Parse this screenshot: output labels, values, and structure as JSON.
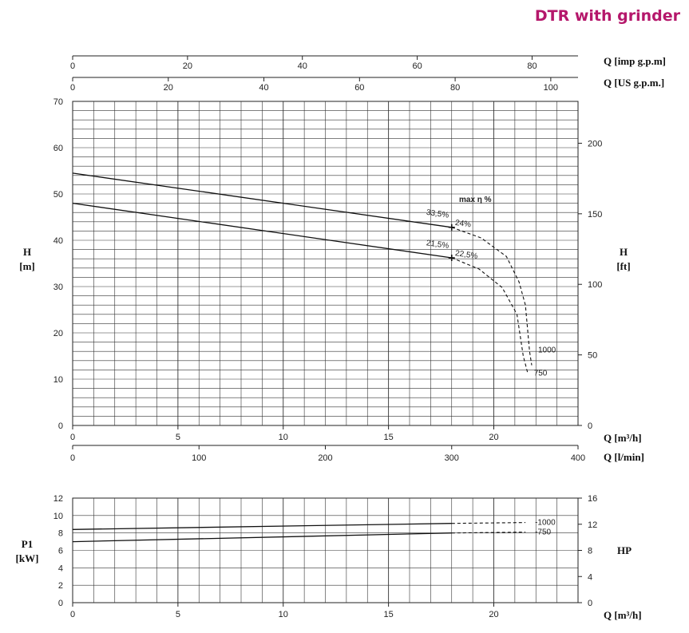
{
  "title": "DTR with grinder",
  "chart_data": [
    {
      "type": "line",
      "name": "head",
      "x_unit": "Q [m³/h]",
      "xlim": [
        0,
        24
      ],
      "ylim": [
        0,
        70
      ],
      "y_unit_left": [
        "H",
        "[m]"
      ],
      "y_unit_right": [
        "H",
        "[ft]"
      ],
      "x_ticks": [
        "0",
        "5",
        "10",
        "15",
        "20"
      ],
      "y_ticks": [
        "0",
        "10",
        "20",
        "30",
        "40",
        "50",
        "60",
        "70"
      ],
      "right_ticks": [
        "0",
        "50",
        "100",
        "150",
        "200"
      ],
      "top_scales": [
        {
          "label": "Q [imp g.p.m]",
          "ticks": [
            "0",
            "20",
            "40",
            "60",
            "80"
          ]
        },
        {
          "label": "Q [US g.p.m.]",
          "ticks": [
            "0",
            "20",
            "40",
            "60",
            "80",
            "100"
          ]
        }
      ],
      "bottom_scale": {
        "label": "Q [l/min]",
        "ticks": [
          "0",
          "100",
          "200",
          "300",
          "400"
        ]
      },
      "legend_title": "max η %",
      "series": [
        {
          "name": "1000",
          "solid": [
            [
              0,
              54.5
            ],
            [
              18,
              42.8
            ]
          ],
          "dashed": [
            [
              18,
              42.8
            ],
            [
              19.4,
              40.5
            ],
            [
              20.6,
              36.5
            ],
            [
              21.2,
              31
            ],
            [
              21.5,
              26
            ],
            [
              21.7,
              16
            ],
            [
              21.8,
              13
            ]
          ],
          "bep": [
            18,
            42.8
          ],
          "bep_labels": [
            "33,5%",
            "24%"
          ]
        },
        {
          "name": "750",
          "solid": [
            [
              0,
              48
            ],
            [
              18,
              36.2
            ]
          ],
          "dashed": [
            [
              18,
              36.2
            ],
            [
              19.3,
              33.8
            ],
            [
              20.4,
              29.8
            ],
            [
              21.1,
              24
            ],
            [
              21.4,
              15
            ],
            [
              21.6,
              11.5
            ]
          ],
          "bep": [
            18,
            36.2
          ],
          "bep_labels": [
            "21,5%",
            "22,5%"
          ]
        }
      ]
    },
    {
      "type": "line",
      "name": "power",
      "x_unit": "Q [m³/h]",
      "xlim": [
        0,
        24
      ],
      "ylim": [
        0,
        12
      ],
      "y_unit_left": [
        "P1",
        "[kW]"
      ],
      "y_unit_right": [
        "HP"
      ],
      "x_ticks": [
        "0",
        "5",
        "10",
        "15",
        "20"
      ],
      "y_ticks": [
        "0",
        "2",
        "4",
        "6",
        "8",
        "10",
        "12"
      ],
      "right_ticks": [
        "0",
        "4",
        "8",
        "12",
        "16"
      ],
      "series": [
        {
          "name": "1000",
          "solid": [
            [
              0,
              8.4
            ],
            [
              18,
              9.1
            ]
          ],
          "dashed": [
            [
              18,
              9.1
            ],
            [
              21.5,
              9.2
            ]
          ]
        },
        {
          "name": "750",
          "solid": [
            [
              0,
              7.0
            ],
            [
              18,
              8.0
            ]
          ],
          "dashed": [
            [
              18,
              8.0
            ],
            [
              21.5,
              8.1
            ]
          ]
        }
      ]
    }
  ]
}
